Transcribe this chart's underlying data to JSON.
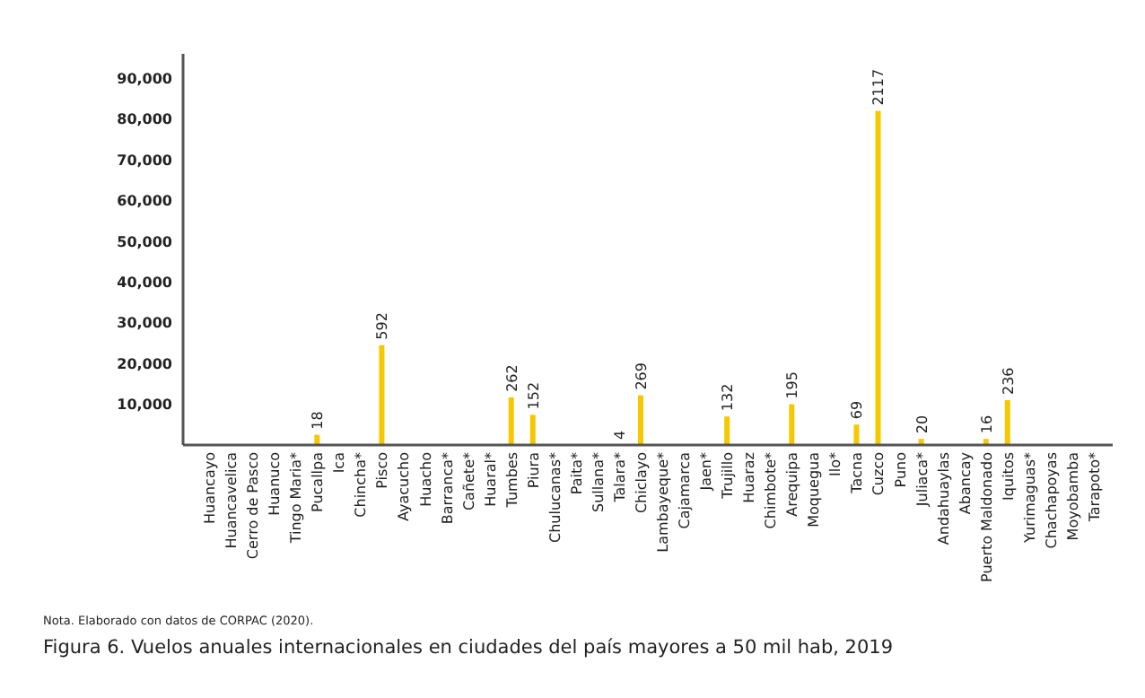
{
  "chart_data": {
    "type": "bar",
    "title": "Figura 6. Vuelos anuales internacionales en ciudades del país mayores a 50 mil hab, 2019",
    "annotations": [
      "Nota. Elaborado con datos de CORPAC (2020).",
      {
        "text": "18",
        "x": "Pucallpa",
        "y": 2500
      },
      {
        "text": "592",
        "x": "Pisco",
        "y": 24500
      },
      {
        "text": "262",
        "x": "Tumbes",
        "y": 11700
      },
      {
        "text": "152",
        "x": "Piura",
        "y": 7400
      },
      {
        "text": "4",
        "x": "Talara*",
        "y": 0
      },
      {
        "text": "269",
        "x": "Chiclayo",
        "y": 12200
      },
      {
        "text": "132",
        "x": "Trujillo",
        "y": 7000
      },
      {
        "text": "195",
        "x": "Arequipa",
        "y": 10000
      },
      {
        "text": "69",
        "x": "Tacna",
        "y": 5000
      },
      {
        "text": "2117",
        "x": "Cuzco",
        "y": 82000
      },
      {
        "text": "20",
        "x": "Juliaca*",
        "y": 1500
      },
      {
        "text": "16",
        "x": "Puerto Maldonado",
        "y": 1500
      },
      {
        "text": "236",
        "x": "Iquitos",
        "y": 11000
      }
    ],
    "categories": [
      "Huancayo",
      "Huancavelica",
      "Cerro de Pasco",
      "Huanuco",
      "Tingo Maria*",
      "Pucallpa",
      "Ica",
      "Chincha*",
      "Pisco",
      "Ayacucho",
      "Huacho",
      "Barranca*",
      "Cañete*",
      "Huaral*",
      "Tumbes",
      "Piura",
      "Chulucanas*",
      "Paita*",
      "Sullana*",
      "Talara*",
      "Chiclayo",
      "Lambayeque*",
      "Cajamarca",
      "Jaen*",
      "Trujillo",
      "Huaraz",
      "Chimbote*",
      "Arequipa",
      "Moquegua",
      "Ilo*",
      "Tacna",
      "Cuzco",
      "Puno",
      "Juliaca*",
      "Andahuaylas",
      "Abancay",
      "Puerto Maldonado",
      "Iquitos",
      "Yurimaguas*",
      "Chachapoyas",
      "Moyobamba",
      "Tarapoto*"
    ],
    "values": [
      null,
      null,
      null,
      null,
      null,
      2500,
      null,
      null,
      24500,
      null,
      null,
      null,
      null,
      null,
      11700,
      7400,
      null,
      null,
      null,
      0,
      12200,
      null,
      null,
      null,
      7000,
      null,
      null,
      10000,
      null,
      null,
      5000,
      82000,
      null,
      1500,
      null,
      null,
      1500,
      11000,
      null,
      null,
      null,
      null
    ],
    "color": "#f5c800",
    "ylim": [
      0,
      96000
    ],
    "yticks": [
      {
        "value": 10000,
        "label": "10,000"
      },
      {
        "value": 20000,
        "label": "20,000"
      },
      {
        "value": 30000,
        "label": "30,000"
      },
      {
        "value": 40000,
        "label": "40,000"
      },
      {
        "value": 50000,
        "label": "50,000"
      },
      {
        "value": 60000,
        "label": "60,000"
      },
      {
        "value": 70000,
        "label": "70,000"
      },
      {
        "value": 80000,
        "label": "80,000"
      },
      {
        "value": 90000,
        "label": "90,000"
      }
    ],
    "grid": false
  }
}
